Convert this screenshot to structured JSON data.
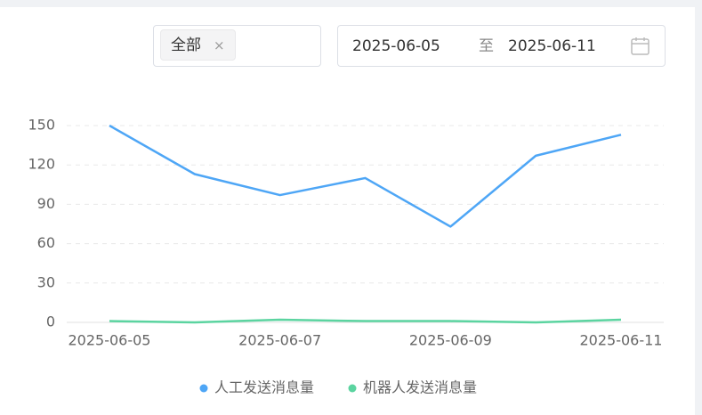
{
  "filters": {
    "tag": "全部",
    "tag_close": "×",
    "date_start": "2025-06-05",
    "date_separator": "至",
    "date_end": "2025-06-11"
  },
  "chart_data": {
    "type": "line",
    "categories": [
      "2025-06-05",
      null,
      "2025-06-07",
      null,
      "2025-06-09",
      null,
      "2025-06-11"
    ],
    "series": [
      {
        "name": "人工发送消息量",
        "color": "#4ea6f6",
        "values": [
          150,
          113,
          97,
          110,
          73,
          127,
          143
        ]
      },
      {
        "name": "机器人发送消息量",
        "color": "#5bd4a0",
        "values": [
          1,
          0,
          2,
          1,
          1,
          0,
          2
        ]
      }
    ],
    "ylim": [
      0,
      150
    ],
    "yticks": [
      0,
      30,
      60,
      90,
      120,
      150
    ],
    "grid": true
  }
}
